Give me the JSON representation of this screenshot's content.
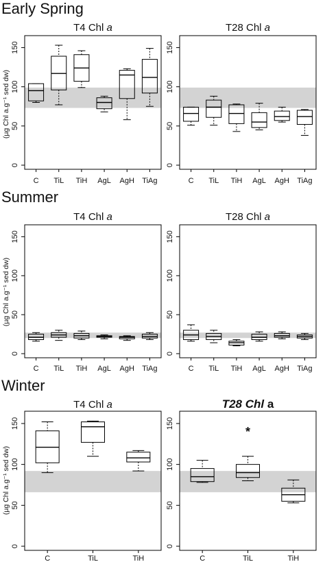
{
  "sections": [
    {
      "title": "Early Spring"
    },
    {
      "title": "Summer"
    },
    {
      "title": "Winter"
    }
  ],
  "ylabel": "(µg Chl a.g⁻¹ sed dw)",
  "chart_data": [
    {
      "type": "box",
      "section": "Early Spring",
      "title": "T4 Chl a",
      "ylim": [
        0,
        160
      ],
      "yticks": [
        0,
        50,
        100,
        150
      ],
      "categories": [
        "C",
        "TiL",
        "TiH",
        "AgL",
        "AgH",
        "TiAg"
      ],
      "reference_band": [
        73,
        99
      ],
      "boxes": [
        {
          "min": 80,
          "q1": 82,
          "median": 95,
          "q3": 104,
          "max": 104
        },
        {
          "min": 77,
          "q1": 96,
          "median": 117,
          "q3": 139,
          "max": 153
        },
        {
          "min": 99,
          "q1": 107,
          "median": 124,
          "q3": 141,
          "max": 146
        },
        {
          "min": 68,
          "q1": 72,
          "median": 80,
          "q3": 86,
          "max": 88
        },
        {
          "min": 58,
          "q1": 85,
          "median": 115,
          "q3": 121,
          "max": 123
        },
        {
          "min": 75,
          "q1": 92,
          "median": 112,
          "q3": 135,
          "max": 149
        }
      ]
    },
    {
      "type": "box",
      "section": "Early Spring",
      "title": "T28 Chl a",
      "ylim": [
        0,
        160
      ],
      "yticks": [
        0,
        50,
        100,
        150
      ],
      "categories": [
        "C",
        "TiL",
        "TiH",
        "AgL",
        "AgH",
        "TiAg"
      ],
      "reference_band": [
        73,
        99
      ],
      "boxes": [
        {
          "min": 51,
          "q1": 56,
          "median": 66,
          "q3": 74,
          "max": 74
        },
        {
          "min": 51,
          "q1": 61,
          "median": 74,
          "q3": 83,
          "max": 88
        },
        {
          "min": 43,
          "q1": 53,
          "median": 66,
          "q3": 77,
          "max": 78
        },
        {
          "min": 45,
          "q1": 48,
          "median": 55,
          "q3": 67,
          "max": 79
        },
        {
          "min": 55,
          "q1": 57,
          "median": 62,
          "q3": 69,
          "max": 74
        },
        {
          "min": 38,
          "q1": 52,
          "median": 62,
          "q3": 70,
          "max": 71
        }
      ]
    },
    {
      "type": "box",
      "section": "Summer",
      "title": "T4 Chl a",
      "ylim": [
        0,
        160
      ],
      "yticks": [
        0,
        50,
        100,
        150
      ],
      "categories": [
        "C",
        "TiL",
        "TiH",
        "AgL",
        "AgH",
        "TiAg"
      ],
      "reference_band": [
        20,
        27
      ],
      "boxes": [
        {
          "min": 16,
          "q1": 18,
          "median": 21,
          "q3": 25,
          "max": 27
        },
        {
          "min": 17,
          "q1": 21,
          "median": 24,
          "q3": 27,
          "max": 30
        },
        {
          "min": 18,
          "q1": 20,
          "median": 23,
          "q3": 26,
          "max": 29
        },
        {
          "min": 19,
          "q1": 21,
          "median": 22,
          "q3": 23,
          "max": 24
        },
        {
          "min": 17,
          "q1": 19,
          "median": 21,
          "q3": 22,
          "max": 23
        },
        {
          "min": 18,
          "q1": 20,
          "median": 22,
          "q3": 25,
          "max": 27
        }
      ]
    },
    {
      "type": "box",
      "section": "Summer",
      "title": "T28 Chl a",
      "ylim": [
        0,
        160
      ],
      "yticks": [
        0,
        50,
        100,
        150
      ],
      "categories": [
        "C",
        "TiL",
        "TiH",
        "AgL",
        "AgH",
        "TiAg"
      ],
      "reference_band": [
        20,
        27
      ],
      "boxes": [
        {
          "min": 16,
          "q1": 18,
          "median": 24,
          "q3": 30,
          "max": 37
        },
        {
          "min": 14,
          "q1": 18,
          "median": 22,
          "q3": 26,
          "max": 30
        },
        {
          "min": 10,
          "q1": 11,
          "median": 14,
          "q3": 16,
          "max": 18
        },
        {
          "min": 16,
          "q1": 18,
          "median": 21,
          "q3": 25,
          "max": 28
        },
        {
          "min": 19,
          "q1": 21,
          "median": 23,
          "q3": 26,
          "max": 28
        },
        {
          "min": 18,
          "q1": 20,
          "median": 22,
          "q3": 24,
          "max": 26
        }
      ]
    },
    {
      "type": "box",
      "section": "Winter",
      "title": "T4 Chl a",
      "ylim": [
        0,
        160
      ],
      "yticks": [
        0,
        50,
        100,
        150
      ],
      "categories": [
        "C",
        "TiL",
        "TiH"
      ],
      "reference_band": [
        66,
        92
      ],
      "boxes": [
        {
          "min": 90,
          "q1": 102,
          "median": 121,
          "q3": 141,
          "max": 152
        },
        {
          "min": 110,
          "q1": 127,
          "median": 146,
          "q3": 152,
          "max": 153
        },
        {
          "min": 92,
          "q1": 103,
          "median": 108,
          "q3": 115,
          "max": 117
        }
      ]
    },
    {
      "type": "box",
      "section": "Winter",
      "title": "T28 Chl a",
      "title_bold_italic": true,
      "annotation": "*",
      "annotation_category": "TiL",
      "ylim": [
        0,
        160
      ],
      "yticks": [
        0,
        50,
        100,
        150
      ],
      "categories": [
        "C",
        "TiL",
        "TiH"
      ],
      "reference_band": [
        66,
        92
      ],
      "boxes": [
        {
          "min": 78,
          "q1": 79,
          "median": 85,
          "q3": 95,
          "max": 105
        },
        {
          "min": 80,
          "q1": 84,
          "median": 90,
          "q3": 100,
          "max": 110
        },
        {
          "min": 53,
          "q1": 55,
          "median": 63,
          "q3": 71,
          "max": 81
        }
      ]
    }
  ],
  "colors": {
    "band": "#d3d3d3",
    "box_stroke": "#000000",
    "frame": "#000000"
  }
}
